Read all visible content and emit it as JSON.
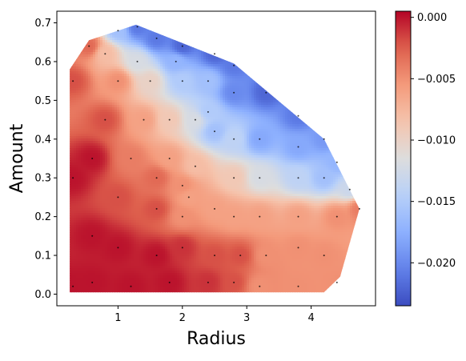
{
  "chart_data": {
    "type": "heatmap",
    "subtype": "tricontourf-with-scatter",
    "xlabel": "Radius",
    "ylabel": "Amount",
    "xlim": [
      0.05,
      5.0
    ],
    "ylim": [
      -0.03,
      0.73
    ],
    "x_ticks": [
      1,
      2,
      3,
      4
    ],
    "y_ticks": [
      0.0,
      0.1,
      0.2,
      0.3,
      0.4,
      0.5,
      0.6,
      0.7
    ],
    "x_tick_labels": [
      "1",
      "2",
      "3",
      "4"
    ],
    "y_tick_labels": [
      "0.0",
      "0.1",
      "0.2",
      "0.3",
      "0.4",
      "0.5",
      "0.6",
      "0.7"
    ],
    "colormap": "coolwarm",
    "colorbar": {
      "min": -0.0235,
      "max": 0.0005,
      "ticks": [
        0.0,
        -0.005,
        -0.01,
        -0.015,
        -0.02
      ],
      "tick_labels": [
        "0.000",
        "−0.005",
        "−0.010",
        "−0.015",
        "−0.020"
      ]
    },
    "hull": [
      [
        0.25,
        0.005
      ],
      [
        0.25,
        0.58
      ],
      [
        0.55,
        0.655
      ],
      [
        1.28,
        0.695
      ],
      [
        2.8,
        0.595
      ],
      [
        4.2,
        0.4
      ],
      [
        4.75,
        0.22
      ],
      [
        4.45,
        0.045
      ],
      [
        4.2,
        0.005
      ]
    ],
    "samples": [
      [
        0.3,
        0.02,
        0.0
      ],
      [
        0.3,
        0.3,
        0.0
      ],
      [
        0.3,
        0.55,
        -0.002
      ],
      [
        0.55,
        0.64,
        -0.003
      ],
      [
        0.8,
        0.62,
        -0.008
      ],
      [
        1.0,
        0.68,
        -0.016
      ],
      [
        1.3,
        0.69,
        -0.021
      ],
      [
        1.6,
        0.66,
        -0.021
      ],
      [
        2.0,
        0.64,
        -0.022
      ],
      [
        2.5,
        0.62,
        -0.022
      ],
      [
        2.8,
        0.59,
        -0.021
      ],
      [
        3.3,
        0.52,
        -0.022
      ],
      [
        3.8,
        0.46,
        -0.021
      ],
      [
        4.2,
        0.4,
        -0.019
      ],
      [
        4.4,
        0.34,
        -0.017
      ],
      [
        4.6,
        0.27,
        -0.013
      ],
      [
        4.75,
        0.22,
        -0.004
      ],
      [
        1.0,
        0.55,
        -0.005
      ],
      [
        1.5,
        0.55,
        -0.01
      ],
      [
        2.0,
        0.55,
        -0.015
      ],
      [
        2.4,
        0.55,
        -0.016
      ],
      [
        2.8,
        0.52,
        -0.02
      ],
      [
        1.4,
        0.45,
        -0.006
      ],
      [
        1.8,
        0.45,
        -0.009
      ],
      [
        2.2,
        0.45,
        -0.012
      ],
      [
        2.5,
        0.42,
        -0.016
      ],
      [
        2.8,
        0.4,
        -0.014
      ],
      [
        3.2,
        0.4,
        -0.018
      ],
      [
        3.8,
        0.38,
        -0.018
      ],
      [
        1.2,
        0.35,
        -0.004
      ],
      [
        1.8,
        0.35,
        -0.006
      ],
      [
        2.2,
        0.33,
        -0.008
      ],
      [
        2.8,
        0.3,
        -0.009
      ],
      [
        3.2,
        0.3,
        -0.012
      ],
      [
        3.8,
        0.3,
        -0.014
      ],
      [
        4.2,
        0.3,
        -0.016
      ],
      [
        1.0,
        0.25,
        -0.002
      ],
      [
        1.6,
        0.22,
        -0.002
      ],
      [
        2.0,
        0.2,
        -0.005
      ],
      [
        2.5,
        0.22,
        -0.006
      ],
      [
        2.8,
        0.2,
        -0.006
      ],
      [
        3.2,
        0.2,
        -0.006
      ],
      [
        3.8,
        0.2,
        -0.006
      ],
      [
        4.4,
        0.2,
        -0.005
      ],
      [
        0.6,
        0.15,
        0.0
      ],
      [
        1.0,
        0.12,
        0.0
      ],
      [
        1.6,
        0.1,
        0.0
      ],
      [
        2.0,
        0.12,
        -0.001
      ],
      [
        2.5,
        0.1,
        -0.002
      ],
      [
        2.9,
        0.1,
        -0.002
      ],
      [
        3.3,
        0.1,
        -0.005
      ],
      [
        3.8,
        0.12,
        -0.005
      ],
      [
        4.2,
        0.1,
        -0.005
      ],
      [
        0.6,
        0.03,
        0.0
      ],
      [
        1.2,
        0.02,
        0.0
      ],
      [
        1.8,
        0.03,
        0.0
      ],
      [
        2.4,
        0.03,
        -0.001
      ],
      [
        2.8,
        0.03,
        -0.002
      ],
      [
        3.2,
        0.02,
        -0.005
      ],
      [
        3.8,
        0.02,
        -0.005
      ],
      [
        4.4,
        0.03,
        -0.005
      ],
      [
        1.6,
        0.3,
        -0.003
      ],
      [
        2.0,
        0.28,
        -0.005
      ],
      [
        0.8,
        0.45,
        -0.002
      ],
      [
        0.6,
        0.35,
        0.0
      ],
      [
        1.3,
        0.6,
        -0.012
      ],
      [
        1.9,
        0.6,
        -0.017
      ],
      [
        2.4,
        0.47,
        -0.015
      ],
      [
        2.1,
        0.25,
        -0.006
      ]
    ]
  }
}
